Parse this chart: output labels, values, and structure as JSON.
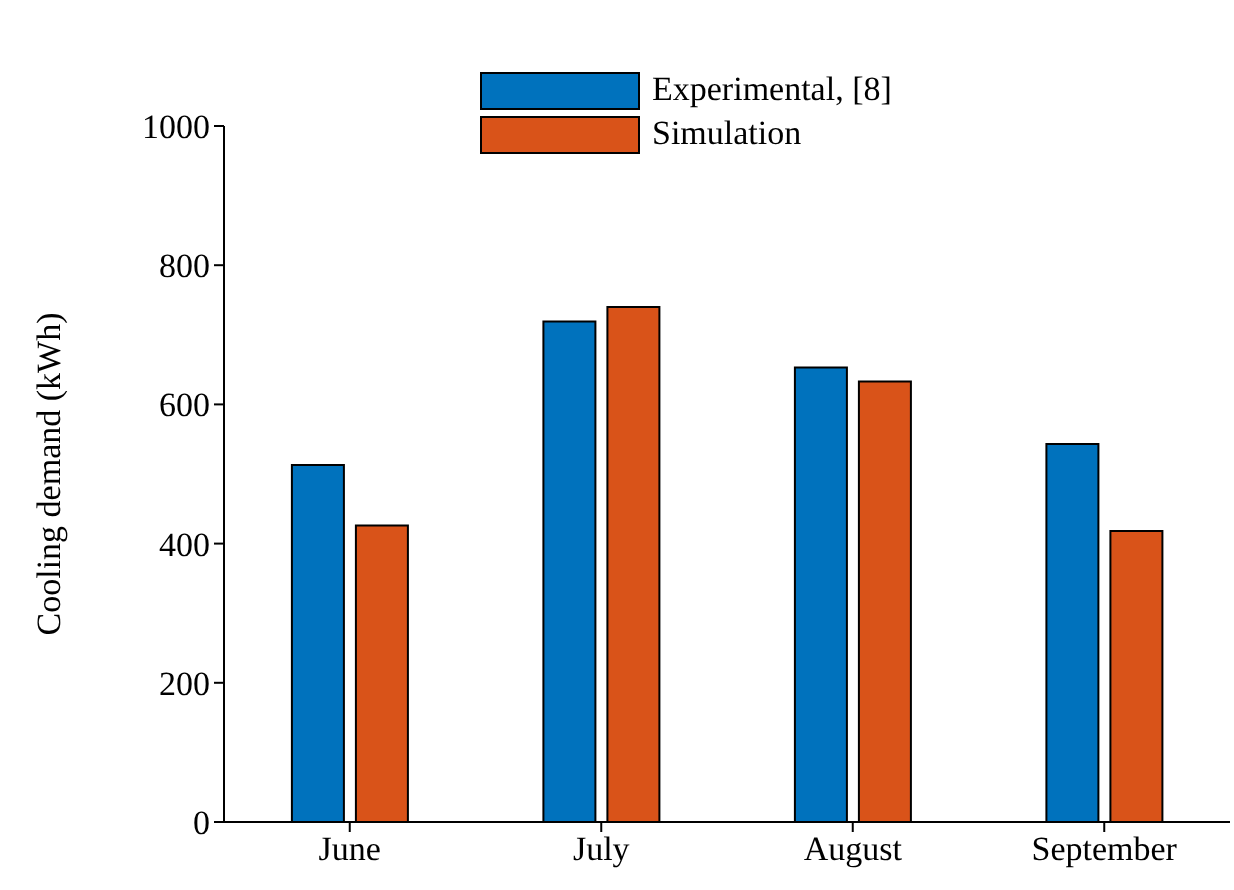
{
  "chart_data": {
    "type": "bar",
    "ylabel": "Cooling demand (kWh)",
    "categories": [
      "June",
      "July",
      "August",
      "September"
    ],
    "series": [
      {
        "name": "Experimental, [8]",
        "color": "#0072bd",
        "values": [
          513,
          719,
          653,
          543
        ]
      },
      {
        "name": "Simulation",
        "color": "#d95319",
        "values": [
          426,
          740,
          633,
          418
        ]
      }
    ],
    "ylim": [
      0,
      1000
    ],
    "yticks": [
      0,
      200,
      400,
      600,
      800,
      1000
    ],
    "grid": false,
    "legend": "top"
  }
}
